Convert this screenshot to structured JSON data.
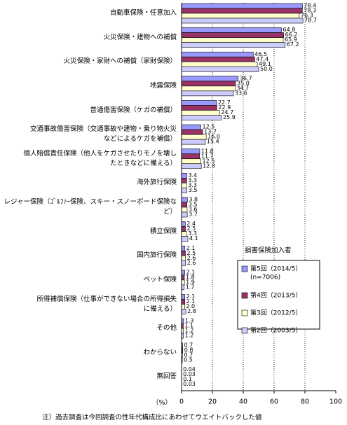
{
  "chart_data": {
    "type": "bar",
    "orientation": "horizontal",
    "categories": [
      "自動車保険・任意加入",
      "火災保険・建物への補償",
      "火災保険・家財への補償（家財保険）",
      "地震保険",
      "普通傷害保険（ケガの補償）",
      "交通事故傷害保険（交通事故や建物・乗り物火災\nなどによるケガを補償）",
      "個人賠償責任保険（他人をケガさせたりモノを壊し\nたときなどに備える）",
      "海外旅行保険",
      "レジャー保険（ｺﾞﾙﾌｧｰ保険、スキー・スノーボード保険な\nど）",
      "積立保険",
      "国内旅行保険",
      "ペット保険",
      "所得補償保険（仕事ができない場合の所得損失\nに備える）",
      "その他",
      "わからない",
      "無回答"
    ],
    "series": [
      {
        "name": "第5回（2014/5）",
        "color": "#9999ff",
        "values": [
          78.4,
          64.8,
          46.5,
          36.7,
          22.7,
          12.5,
          11.8,
          3.4,
          3.8,
          2.4,
          2.1,
          2.1,
          2.1,
          1.3,
          0.7,
          0.04
        ],
        "value_labels": [
          "78.4",
          "64.8",
          "46.5",
          "36.7",
          "22.7",
          "12.5",
          "11.8",
          "3.4",
          "3.8",
          "2.4",
          "2.1",
          "2.1",
          "2.1",
          "1.3",
          "0.7",
          "0.04"
        ]
      },
      {
        "name": "第4回（2013/5）",
        "color": "#993366",
        "values": [
          78.3,
          66.2,
          47.4,
          35.0,
          22.9,
          13.7,
          11.7,
          3.3,
          3.5,
          2.5,
          2.5,
          1.8,
          2.1,
          1.1,
          0.8,
          0.03
        ],
        "value_labels": [
          "78.3",
          "66.2",
          "47.4",
          "35.0",
          "22.9",
          "13.7",
          "11.7",
          "3.3",
          "3.5",
          "2.5",
          "2.5",
          "1.8",
          "2.1",
          "1.1",
          "0.8",
          "0.03"
        ]
      },
      {
        "name": "第3回（2012/5）",
        "color": "#ffffcc",
        "values": [
          76.3,
          65.9,
          49.1,
          34.7,
          24.7,
          16.0,
          12.5,
          3.3,
          3.6,
          3.3,
          2.6,
          1.9,
          2.0,
          1.2,
          0.7,
          0.1
        ],
        "value_labels": [
          "76.3",
          "65.9",
          "49.1",
          "34.7",
          "24.7",
          "16.0",
          "12.5",
          "3.3",
          "3.6",
          "3.3",
          "2.6",
          "1.9",
          "2.0",
          "1.2",
          "0.7",
          "0.1"
        ]
      },
      {
        "name": "第2回（2003/5）",
        "color": "#ccccff",
        "values": [
          78.7,
          67.2,
          50.0,
          33.6,
          25.9,
          15.4,
          12.8,
          3.5,
          3.7,
          4.1,
          2.6,
          1.7,
          2.8,
          1.2,
          0.5,
          0.03
        ],
        "value_labels": [
          "78.7",
          "67.2",
          "50.0",
          "33.6",
          "25.9",
          "15.4",
          "12.8",
          "3.5",
          "3.7",
          "4.1",
          "2.6",
          "1.7",
          "2.8",
          "1.2",
          "0.5",
          "0.03"
        ]
      }
    ],
    "legend_title": "損害保険加入者",
    "legend_note": "(n=7006)",
    "x_unit": "（%）",
    "xlim": [
      0,
      100
    ],
    "xticks": [
      0,
      20,
      40,
      60,
      80,
      100
    ],
    "grid": true,
    "footnote": "注）過去調査は今回調査の性年代構成比にあわせてウエイトバックした値"
  }
}
